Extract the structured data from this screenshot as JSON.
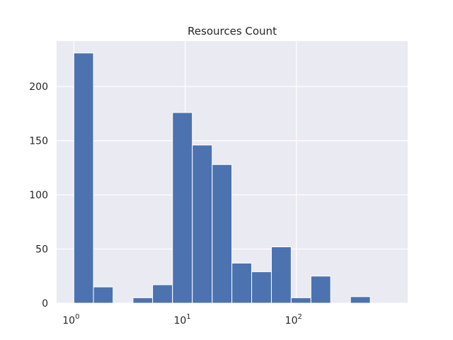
{
  "chart_data": {
    "type": "bar",
    "title": "Resources Count",
    "xlabel": "",
    "ylabel": "",
    "x_scale": "log",
    "x_ticks": [
      {
        "base": "10",
        "exp": "0",
        "value": 1
      },
      {
        "base": "10",
        "exp": "1",
        "value": 10
      },
      {
        "base": "10",
        "exp": "2",
        "value": 100
      }
    ],
    "y_ticks": [
      0,
      50,
      100,
      150,
      200
    ],
    "ylim": [
      0,
      242
    ],
    "xlim": [
      0.7,
      1000
    ],
    "grid": true,
    "colors": {
      "bar": "#4c72b0",
      "background": "#eaeaf2",
      "grid": "#ffffff"
    },
    "bins": [
      {
        "x0": 1.0,
        "x1": 1.5,
        "count": 231
      },
      {
        "x0": 1.5,
        "x1": 2.25,
        "count": 15
      },
      {
        "x0": 2.25,
        "x1": 3.4,
        "count": 0
      },
      {
        "x0": 3.4,
        "x1": 5.1,
        "count": 5
      },
      {
        "x0": 5.1,
        "x1": 7.7,
        "count": 17
      },
      {
        "x0": 7.7,
        "x1": 11.6,
        "count": 176
      },
      {
        "x0": 11.6,
        "x1": 17.5,
        "count": 146
      },
      {
        "x0": 17.5,
        "x1": 26.3,
        "count": 128
      },
      {
        "x0": 26.3,
        "x1": 39.6,
        "count": 37
      },
      {
        "x0": 39.6,
        "x1": 59.6,
        "count": 29
      },
      {
        "x0": 59.6,
        "x1": 89.7,
        "count": 52
      },
      {
        "x0": 89.7,
        "x1": 135,
        "count": 5
      },
      {
        "x0": 135,
        "x1": 203,
        "count": 25
      },
      {
        "x0": 203,
        "x1": 306,
        "count": 0
      },
      {
        "x0": 306,
        "x1": 461,
        "count": 6
      }
    ]
  }
}
